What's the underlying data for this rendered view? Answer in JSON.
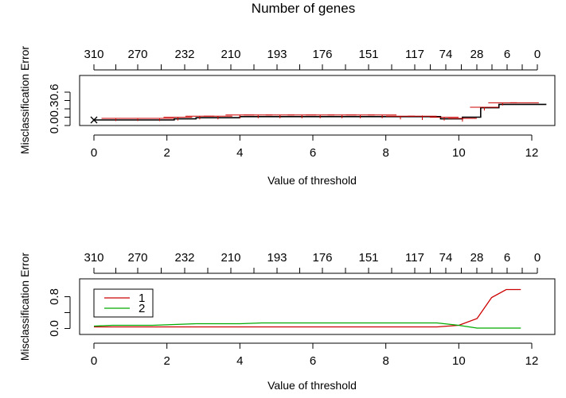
{
  "page_title": "Number of genes",
  "chart_data": [
    {
      "type": "line",
      "xlabel": "Value of threshold",
      "ylabel": "Misclassification Error",
      "top_axis_label": "Number of genes",
      "xlim": [
        0,
        12.2
      ],
      "ylim": [
        0,
        0.9
      ],
      "x_ticks": [
        "0",
        "2",
        "4",
        "6",
        "8",
        "10",
        "12"
      ],
      "y_ticks": [
        "0.0",
        "0.3",
        "0.6"
      ],
      "top_ticks": [
        "310",
        "270",
        "232",
        "210",
        "193",
        "176",
        "151",
        "117",
        "74",
        "28",
        "6",
        "0"
      ],
      "grid": false,
      "marker_x": 0,
      "marker_y": 0.1,
      "series": [
        {
          "color": "#000000",
          "style": "step",
          "x": [
            0,
            2.2,
            2.8,
            4.0,
            8.0,
            9.5,
            10.1,
            10.6,
            11.1,
            12.4
          ],
          "values": [
            0.1,
            0.12,
            0.14,
            0.16,
            0.16,
            0.12,
            0.15,
            0.32,
            0.38,
            0.38
          ]
        },
        {
          "color": "#cc0000",
          "style": "errorbar",
          "x": [
            0.6,
            1.2,
            1.8,
            2.3,
            2.9,
            3.4,
            4.0,
            4.5,
            5.1,
            5.7,
            6.2,
            6.8,
            7.3,
            7.9,
            8.4,
            9.0,
            9.6,
            10.1,
            10.7,
            11.2,
            11.8
          ],
          "values": [
            0.1,
            0.1,
            0.1,
            0.12,
            0.14,
            0.14,
            0.16,
            0.16,
            0.16,
            0.16,
            0.16,
            0.16,
            0.16,
            0.16,
            0.14,
            0.14,
            0.12,
            0.1,
            0.3,
            0.38,
            0.38
          ],
          "err": [
            0.02,
            0.02,
            0.02,
            0.03,
            0.03,
            0.03,
            0.03,
            0.03,
            0.03,
            0.03,
            0.03,
            0.03,
            0.03,
            0.03,
            0.03,
            0.04,
            0.03,
            0.03,
            0.03,
            0.02,
            0.0
          ]
        }
      ]
    },
    {
      "type": "line",
      "xlabel": "Value of threshold",
      "ylabel": "Misclassification Error",
      "top_axis_label": "Number of genes",
      "xlim": [
        -0.1,
        12.3
      ],
      "ylim": [
        -0.15,
        1.25
      ],
      "x_ticks": [
        "0",
        "2",
        "4",
        "6",
        "8",
        "10",
        "12"
      ],
      "y_ticks": [
        "0.0",
        "0.8"
      ],
      "top_ticks": [
        "310",
        "270",
        "232",
        "210",
        "193",
        "176",
        "151",
        "117",
        "74",
        "28",
        "6",
        "0"
      ],
      "grid": false,
      "legend_position": "top-left",
      "series": [
        {
          "name": "1",
          "color": "#cc0000",
          "x": [
            0,
            0.5,
            1.0,
            1.6,
            2.2,
            2.8,
            3.4,
            4.0,
            4.6,
            5.2,
            5.8,
            6.4,
            7.0,
            7.6,
            8.2,
            8.8,
            9.4,
            10.0,
            10.5,
            10.9,
            11.3,
            11.7
          ],
          "values": [
            0.04,
            0.04,
            0.04,
            0.04,
            0.04,
            0.04,
            0.04,
            0.04,
            0.04,
            0.04,
            0.04,
            0.04,
            0.04,
            0.04,
            0.04,
            0.04,
            0.04,
            0.08,
            0.25,
            0.78,
            0.98,
            0.98
          ]
        },
        {
          "name": "2",
          "color": "#00aa00",
          "x": [
            0,
            0.5,
            1.0,
            1.6,
            2.2,
            2.8,
            3.4,
            4.0,
            4.6,
            5.2,
            5.8,
            6.4,
            7.0,
            7.6,
            8.2,
            8.8,
            9.4,
            10.0,
            10.5,
            10.9,
            11.3,
            11.7
          ],
          "values": [
            0.06,
            0.08,
            0.08,
            0.08,
            0.1,
            0.12,
            0.12,
            0.12,
            0.14,
            0.14,
            0.14,
            0.14,
            0.14,
            0.14,
            0.14,
            0.14,
            0.14,
            0.08,
            0.01,
            0.01,
            0.01,
            0.01
          ]
        }
      ]
    }
  ]
}
